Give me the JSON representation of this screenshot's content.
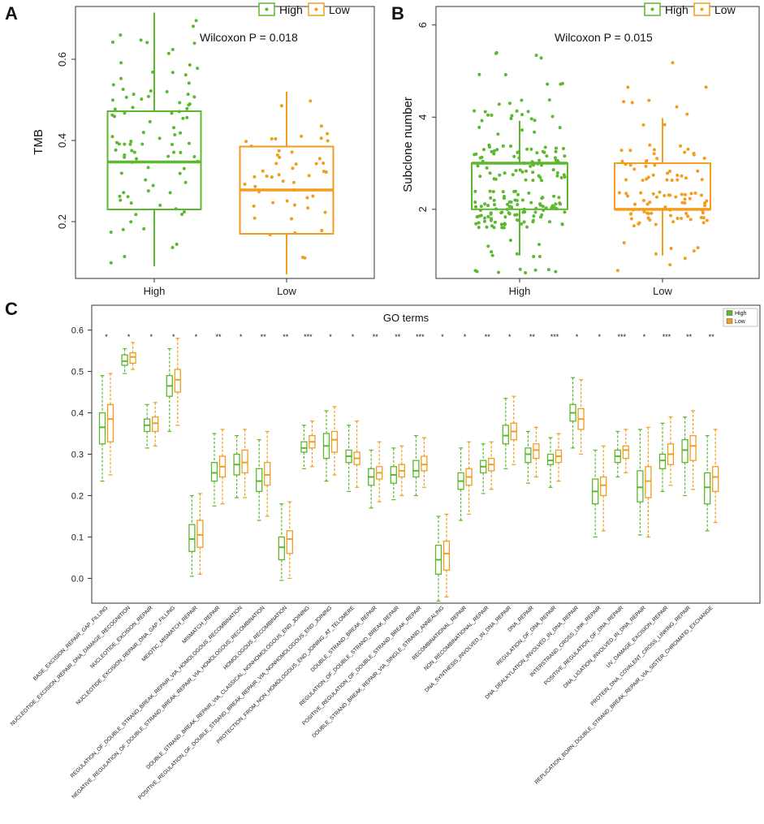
{
  "colors": {
    "high": "#5cb82e",
    "low": "#f29d1f"
  },
  "panels": {
    "a": "A",
    "b": "B",
    "c": "C"
  },
  "chart_data": [
    {
      "id": "A",
      "type": "box",
      "ylabel": "TMB",
      "ylim": [
        0.06,
        0.73
      ],
      "yticks": [
        "0.2",
        "0.4",
        "0.6"
      ],
      "categories": [
        "High",
        "Low"
      ],
      "legend": [
        "High",
        "Low"
      ],
      "annotation": "Wilcoxon P = 0.018",
      "boxes": [
        {
          "group": "High",
          "min": 0.09,
          "q1": 0.23,
          "median": 0.347,
          "q3": 0.472,
          "max": 0.715
        },
        {
          "group": "Low",
          "min": 0.07,
          "q1": 0.17,
          "median": 0.278,
          "q3": 0.385,
          "max": 0.52
        }
      ],
      "points": {
        "High": 95,
        "Low": 50
      }
    },
    {
      "id": "B",
      "type": "box",
      "ylabel": "Subclone number",
      "ylim": [
        0.5,
        6.4
      ],
      "yticks": [
        "2",
        "4",
        "6"
      ],
      "categories": [
        "High",
        "Low"
      ],
      "legend": [
        "High",
        "Low"
      ],
      "annotation": "Wilcoxon P = 0.015",
      "boxes": [
        {
          "group": "High",
          "min": 1.0,
          "q1": 2.0,
          "median": 3.0,
          "q3": 3.0,
          "max": 3.92
        },
        {
          "group": "Low",
          "min": 1.0,
          "q1": 2.0,
          "median": 2.0,
          "q3": 3.0,
          "max": 3.98
        }
      ],
      "points": {
        "High": 210,
        "Low": 110
      }
    },
    {
      "id": "C",
      "type": "box",
      "title": "GO terms",
      "ylim": [
        -0.06,
        0.66
      ],
      "yticks": [
        "0.0",
        "0.1",
        "0.2",
        "0.3",
        "0.4",
        "0.5",
        "0.6"
      ],
      "legend": [
        "High",
        "Low"
      ],
      "categories": [
        "BASE_EXCISION_REPAIR_GAP_FILLING",
        "NUCLEOTIDE_EXCISION_REPAIR_DNA_DAMAGE_RECOGNITION",
        "NUCLEOTIDE_EXCISION_REPAIR",
        "NUCLEOTIDE_EXCISION_REPAIR_DNA_GAP_FILLING",
        "MEIOTIC_MISMATCH_REPAIR",
        "MISMATCH_REPAIR",
        "REGULATION_OF_DOUBLE_STRAND_BREAK_REPAIR_VIA_HOMOLOGOUS_RECOMBINATION",
        "NEGATIVE_REGULATION_OF_DOUBLE_STRAND_BREAK_REPAIR_VIA_HOMOLOGOUS_RECOMBINATION",
        "HOMOLOGOUS_RECOMBINATION",
        "DOUBLE_STRAND_BREAK_REPAIR_VIA_CLASSICAL_NONHOMOLOGOUS_END_JOINING",
        "POSITIVE_REGULATION_OF_DOUBLE_STRAND_BREAK_REPAIR_VIA_NONHOMOLOGOUS_END_JOINING",
        "PROTECTION_FROM_NON_HOMOLOGOUS_END_JOINING_AT_TELOMERE",
        "DOUBLE_STRAND_BREAK_REPAIR",
        "REGULATION_OF_DOUBLE_STRAND_BREAK_REPAIR",
        "POSITIVE_REGULATION_OF_DOUBLE_STRAND_BREAK_REPAIR",
        "DOUBLE_STRAND_BREAK_REPAIR_VIA_SINGLE_STRAND_ANNEALING",
        "RECOMBINATIONAL_REPAIR",
        "NON_RECOMBINATIONAL_REPAIR",
        "DNA_SYNTHESIS_INVOLVED_IN_DNA_REPAIR",
        "DNA_REPAIR",
        "REGULATION_OF_DNA_REPAIR",
        "DNA_DEALKYLATION_INVOLVED_IN_DNA_REPAIR",
        "INTERSTRAND_CROSS_LINK_REPAIR",
        "POSITIVE_REGULATION_OF_DNA_REPAIR",
        "DNA_LIGATION_INVOLVED_IN_DNA_REPAIR",
        "UV_DAMAGE_EXCISION_REPAIR",
        "PROTEIN_DNA_COVALENT_CROSS_LINKING_REPAIR",
        "REPLICATION_BORN_DOUBLE_STRAND_BREAK_REPAIR_VIA_SISTER_CHROMATID_EXCHANGE"
      ],
      "significance": [
        "*",
        "*",
        "*",
        "*",
        "*",
        "**",
        "*",
        "**",
        "**",
        "***",
        "*",
        "*",
        "**",
        "**",
        "***",
        "*",
        "*",
        "**",
        "*",
        "**",
        "***",
        "*",
        "*",
        "***",
        "*",
        "***",
        "**",
        "**"
      ],
      "series": [
        {
          "name": "High",
          "boxes": [
            [
              0.235,
              0.325,
              0.365,
              0.4,
              0.49
            ],
            [
              0.495,
              0.515,
              0.525,
              0.54,
              0.555
            ],
            [
              0.315,
              0.355,
              0.37,
              0.385,
              0.42
            ],
            [
              0.355,
              0.44,
              0.465,
              0.49,
              0.555
            ],
            [
              0.005,
              0.065,
              0.095,
              0.13,
              0.2
            ],
            [
              0.175,
              0.235,
              0.255,
              0.28,
              0.35
            ],
            [
              0.195,
              0.25,
              0.275,
              0.3,
              0.345
            ],
            [
              0.14,
              0.21,
              0.235,
              0.265,
              0.335
            ],
            [
              -0.005,
              0.045,
              0.075,
              0.1,
              0.18
            ],
            [
              0.265,
              0.305,
              0.315,
              0.33,
              0.37
            ],
            [
              0.235,
              0.29,
              0.32,
              0.35,
              0.405
            ],
            [
              0.21,
              0.28,
              0.295,
              0.31,
              0.37
            ],
            [
              0.17,
              0.225,
              0.245,
              0.265,
              0.31
            ],
            [
              0.19,
              0.23,
              0.25,
              0.27,
              0.315
            ],
            [
              0.2,
              0.245,
              0.26,
              0.285,
              0.345
            ],
            [
              -0.055,
              0.01,
              0.045,
              0.08,
              0.15
            ],
            [
              0.14,
              0.215,
              0.235,
              0.255,
              0.315
            ],
            [
              0.205,
              0.255,
              0.27,
              0.285,
              0.325
            ],
            [
              0.265,
              0.325,
              0.345,
              0.37,
              0.435
            ],
            [
              0.23,
              0.28,
              0.3,
              0.315,
              0.355
            ],
            [
              0.22,
              0.275,
              0.285,
              0.3,
              0.34
            ],
            [
              0.315,
              0.38,
              0.4,
              0.42,
              0.485
            ],
            [
              0.1,
              0.18,
              0.21,
              0.24,
              0.31
            ],
            [
              0.245,
              0.28,
              0.295,
              0.31,
              0.355
            ],
            [
              0.105,
              0.185,
              0.22,
              0.26,
              0.36
            ],
            [
              0.21,
              0.265,
              0.285,
              0.3,
              0.375
            ],
            [
              0.2,
              0.28,
              0.31,
              0.335,
              0.39
            ],
            [
              0.115,
              0.18,
              0.22,
              0.255,
              0.345
            ]
          ]
        },
        {
          "name": "Low",
          "boxes": [
            [
              0.25,
              0.33,
              0.385,
              0.42,
              0.495
            ],
            [
              0.505,
              0.52,
              0.535,
              0.545,
              0.57
            ],
            [
              0.32,
              0.355,
              0.375,
              0.39,
              0.425
            ],
            [
              0.37,
              0.45,
              0.48,
              0.505,
              0.58
            ],
            [
              0.01,
              0.075,
              0.105,
              0.14,
              0.205
            ],
            [
              0.18,
              0.245,
              0.27,
              0.295,
              0.36
            ],
            [
              0.195,
              0.255,
              0.28,
              0.31,
              0.36
            ],
            [
              0.15,
              0.225,
              0.25,
              0.28,
              0.355
            ],
            [
              0.0,
              0.06,
              0.095,
              0.115,
              0.185
            ],
            [
              0.27,
              0.315,
              0.33,
              0.345,
              0.38
            ],
            [
              0.25,
              0.305,
              0.335,
              0.355,
              0.415
            ],
            [
              0.22,
              0.275,
              0.29,
              0.305,
              0.38
            ],
            [
              0.185,
              0.24,
              0.255,
              0.27,
              0.33
            ],
            [
              0.2,
              0.245,
              0.26,
              0.275,
              0.32
            ],
            [
              0.22,
              0.26,
              0.275,
              0.295,
              0.34
            ],
            [
              -0.045,
              0.02,
              0.06,
              0.09,
              0.155
            ],
            [
              0.155,
              0.225,
              0.245,
              0.265,
              0.33
            ],
            [
              0.215,
              0.26,
              0.275,
              0.29,
              0.33
            ],
            [
              0.275,
              0.335,
              0.355,
              0.375,
              0.44
            ],
            [
              0.245,
              0.29,
              0.31,
              0.325,
              0.365
            ],
            [
              0.235,
              0.28,
              0.295,
              0.31,
              0.35
            ],
            [
              0.3,
              0.36,
              0.385,
              0.41,
              0.48
            ],
            [
              0.115,
              0.2,
              0.225,
              0.245,
              0.32
            ],
            [
              0.255,
              0.29,
              0.31,
              0.32,
              0.36
            ],
            [
              0.1,
              0.195,
              0.235,
              0.27,
              0.365
            ],
            [
              0.225,
              0.275,
              0.3,
              0.325,
              0.39
            ],
            [
              0.215,
              0.285,
              0.32,
              0.345,
              0.405
            ],
            [
              0.135,
              0.21,
              0.245,
              0.27,
              0.36
            ]
          ]
        }
      ]
    }
  ]
}
